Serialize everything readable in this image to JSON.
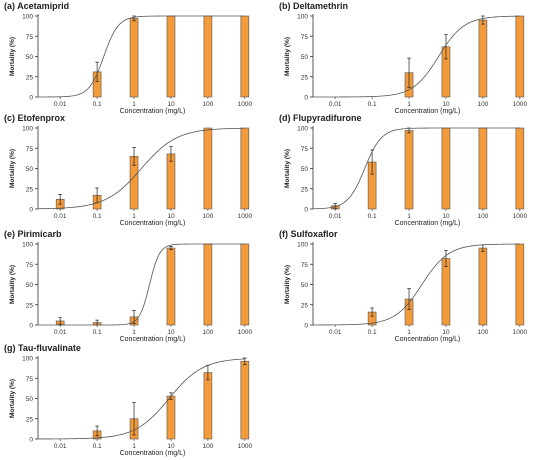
{
  "figure": {
    "bar_color": "#f39a3a",
    "bar_stroke": "#555555",
    "curve_color": "#555555"
  },
  "chart_data": [
    {
      "type": "bar",
      "title": "(a) Acetamiprid",
      "xlabel": "Concentration (mg/L)",
      "ylabel": "Mortality (%)",
      "categories": [
        "0.01",
        "0.1",
        "1",
        "10",
        "100",
        "1000"
      ],
      "values": [
        0,
        31,
        97,
        100,
        100,
        100
      ],
      "errors": [
        0,
        12,
        3,
        0,
        0,
        0
      ],
      "yticks": [
        "0",
        "25",
        "50",
        "75",
        "100"
      ],
      "ylim": [
        0,
        100
      ],
      "curve": {
        "lc50_log10": -0.82,
        "slope": 2.2
      }
    },
    {
      "type": "bar",
      "title": "(b) Deltamethrin",
      "xlabel": "Concentration (mg/L)",
      "ylabel": "Mortality (%)",
      "categories": [
        "0.01",
        "0.1",
        "1",
        "10",
        "100",
        "1000"
      ],
      "values": [
        0,
        0,
        30,
        62,
        95,
        100
      ],
      "errors": [
        0,
        0,
        18,
        15,
        5,
        0
      ],
      "yticks": [
        "0",
        "25",
        "50",
        "75",
        "100"
      ],
      "ylim": [
        0,
        100
      ],
      "curve": {
        "lc50_log10": 0.8,
        "slope": 1.25
      }
    },
    {
      "type": "bar",
      "title": "(c) Etofenprox",
      "xlabel": "Concentration (mg/L)",
      "ylabel": "Mortality (%)",
      "categories": [
        "0.01",
        "0.1",
        "1",
        "10",
        "100",
        "1000"
      ],
      "values": [
        12,
        17,
        65,
        68,
        100,
        100
      ],
      "errors": [
        6,
        9,
        11,
        9,
        0,
        0
      ],
      "yticks": [
        "0",
        "25",
        "50",
        "75",
        "100"
      ],
      "ylim": [
        0,
        100
      ],
      "curve": {
        "lc50_log10": 0.2,
        "slope": 0.9
      }
    },
    {
      "type": "bar",
      "title": "(d) Flupyradifurone",
      "xlabel": "Concentration (mg/L)",
      "ylabel": "Mortality (%)",
      "categories": [
        "0.01",
        "0.1",
        "1",
        "10",
        "100",
        "1000"
      ],
      "values": [
        4,
        58,
        97,
        100,
        100,
        100
      ],
      "errors": [
        3,
        15,
        3,
        0,
        0,
        0
      ],
      "yticks": [
        "0",
        "25",
        "50",
        "75",
        "100"
      ],
      "ylim": [
        0,
        100
      ],
      "curve": {
        "lc50_log10": -1.2,
        "slope": 1.9
      }
    },
    {
      "type": "bar",
      "title": "(e) Pirimicarb",
      "xlabel": "Concentration (mg/L)",
      "ylabel": "Mortality (%)",
      "categories": [
        "0.01",
        "0.1",
        "1",
        "10",
        "100",
        "1000"
      ],
      "values": [
        5,
        3,
        10,
        95,
        100,
        100
      ],
      "errors": [
        4,
        3,
        8,
        2,
        0,
        0
      ],
      "yticks": [
        "0",
        "25",
        "50",
        "75",
        "100"
      ],
      "ylim": [
        0,
        100
      ],
      "curve": {
        "lc50_log10": 0.42,
        "slope": 3.2
      }
    },
    {
      "type": "bar",
      "title": "(f) Sulfoxaflor",
      "xlabel": "Concentration (mg/L)",
      "ylabel": "Mortality (%)",
      "categories": [
        "0.01",
        "0.1",
        "1",
        "10",
        "100",
        "1000"
      ],
      "values": [
        0,
        16,
        32,
        82,
        95,
        100
      ],
      "errors": [
        0,
        5,
        13,
        10,
        4,
        0
      ],
      "yticks": [
        "0",
        "25",
        "50",
        "75",
        "100"
      ],
      "ylim": [
        0,
        100
      ],
      "curve": {
        "lc50_log10": 0.35,
        "slope": 1.2
      }
    },
    {
      "type": "bar",
      "title": "(g) Tau-fluvalinate",
      "xlabel": "Concentration (mg/L)",
      "ylabel": "Mortality (%)",
      "categories": [
        "0.01",
        "0.1",
        "1",
        "10",
        "100",
        "1000"
      ],
      "values": [
        0,
        10,
        25,
        53,
        82,
        96
      ],
      "errors": [
        0,
        6,
        20,
        4,
        9,
        4
      ],
      "yticks": [
        "0",
        "25",
        "50",
        "75",
        "100"
      ],
      "ylim": [
        0,
        100
      ],
      "curve": {
        "lc50_log10": 0.95,
        "slope": 0.95
      }
    }
  ]
}
